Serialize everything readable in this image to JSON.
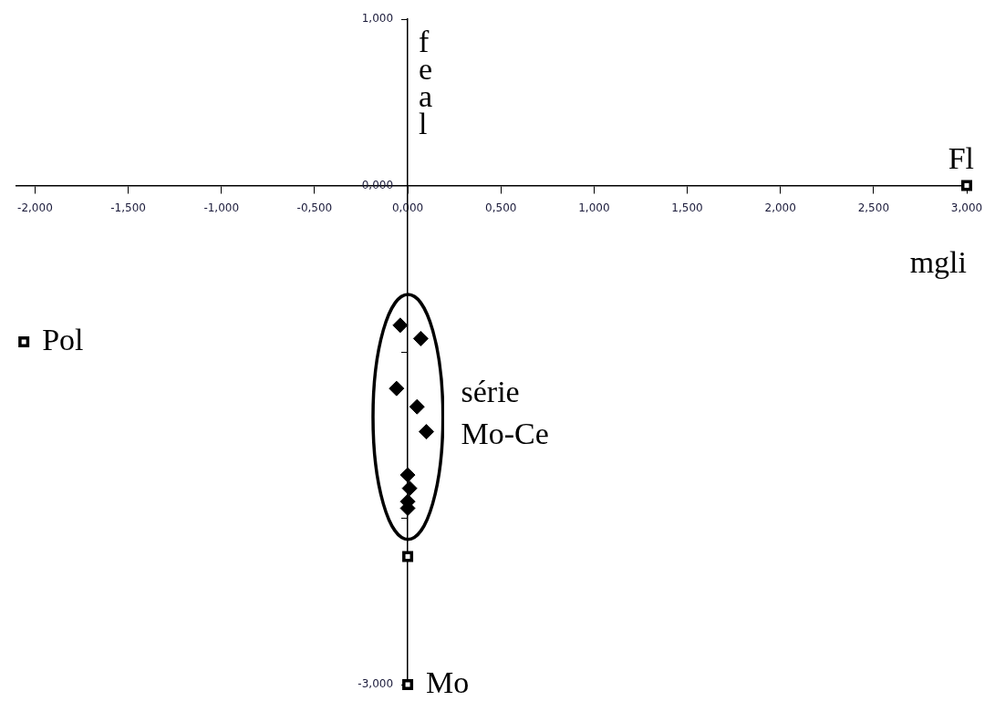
{
  "chart_data": {
    "type": "scatter",
    "xlabel": "mgli",
    "ylabel": "feal",
    "xlim": [
      -2.1,
      3
    ],
    "ylim": [
      -3,
      1
    ],
    "xticks": [
      {
        "value": -2,
        "label": "-2,000"
      },
      {
        "value": -1.5,
        "label": "-1,500"
      },
      {
        "value": -1,
        "label": "-1,000"
      },
      {
        "value": -0.5,
        "label": "-0,500"
      },
      {
        "value": 0,
        "label": "0,000"
      },
      {
        "value": 0.5,
        "label": "0,500"
      },
      {
        "value": 1,
        "label": "1,000"
      },
      {
        "value": 1.5,
        "label": "1,500"
      },
      {
        "value": 2,
        "label": "2,000"
      },
      {
        "value": 2.5,
        "label": "2,500"
      },
      {
        "value": 3,
        "label": "3,000"
      }
    ],
    "yticks": [
      {
        "value": 1,
        "label": "1,000"
      },
      {
        "value": 0,
        "label": "0,000"
      },
      {
        "value": -1,
        "label": null
      },
      {
        "value": -2,
        "label": null
      },
      {
        "value": -3,
        "label": "-3,000"
      }
    ],
    "series": [
      {
        "color": "#000000",
        "marker": "diamond",
        "x": [
          -0.04,
          0.07,
          -0.06,
          0.05,
          0.1,
          0.0,
          0.01,
          0.0,
          0.0
        ],
        "values": [
          -0.84,
          -0.92,
          -1.22,
          -1.33,
          -1.48,
          -1.74,
          -1.82,
          -1.9,
          -1.94
        ]
      },
      {
        "color": "#000000",
        "marker": "square",
        "x": [
          3.0,
          -2.06,
          0.0,
          0.0
        ],
        "values": [
          0.0,
          -0.94,
          -2.23,
          -3.0
        ]
      }
    ],
    "annotations": [
      {
        "text": "Fl",
        "x": 3.0,
        "y": 0.0
      },
      {
        "text": "Pol",
        "x": -2.06,
        "y": -0.94
      },
      {
        "text": "Mo",
        "x": 0.0,
        "y": -3.0
      },
      "série Mo-Ce"
    ],
    "grid": false,
    "legend": false
  }
}
